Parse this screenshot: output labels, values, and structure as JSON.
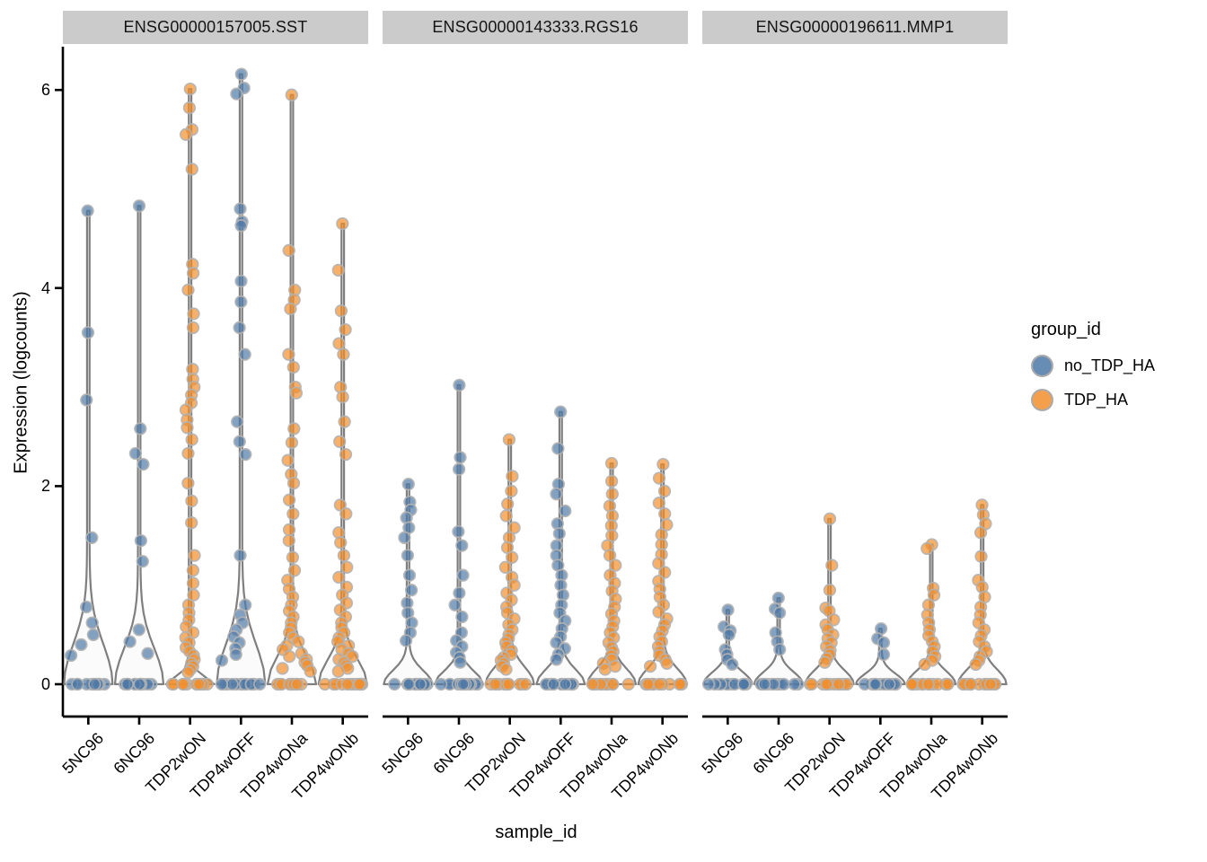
{
  "axes": {
    "y_title": "Expression (logcounts)",
    "x_title": "sample_id",
    "y_ticks": [
      "0",
      "2",
      "4",
      "6"
    ]
  },
  "legend": {
    "title": "group_id",
    "entries": [
      {
        "label": "no_TDP_HA",
        "color": "#4E79A7"
      },
      {
        "label": "TDP_HA",
        "color": "#F28E2B"
      }
    ]
  },
  "chart_data": {
    "type": "violin",
    "subtype": "violin-with-jittered-points",
    "xlabel": "sample_id",
    "ylabel": "Expression (logcounts)",
    "ylim": [
      0,
      6.3
    ],
    "yticks": [
      0,
      2,
      4,
      6
    ],
    "grid": false,
    "legend_position": "right",
    "samples": [
      "5NC96",
      "6NC96",
      "TDP2wON",
      "TDP4wOFF",
      "TDP4wONa",
      "TDP4wONb"
    ],
    "group_of_sample": {
      "5NC96": "no_TDP_HA",
      "6NC96": "no_TDP_HA",
      "TDP2wON": "TDP_HA",
      "TDP4wOFF": "no_TDP_HA",
      "TDP4wONa": "TDP_HA",
      "TDP4wONb": "TDP_HA"
    },
    "group_colors": {
      "no_TDP_HA": "#4E79A7",
      "TDP_HA": "#F28E2B"
    },
    "style": {
      "point_radius": 6.3,
      "point_fill_opacity": 0.7,
      "point_stroke": "#B3B3B3",
      "violin_stroke": "#7F7F7F",
      "violin_fill": "#F7F7F7",
      "strip_bg": "#CBCBCB",
      "axis_color": "#000000"
    },
    "facets": [
      {
        "gene": "ENSG00000157005.SST",
        "violins": [
          {
            "sample": "5NC96",
            "group": "no_TDP_HA",
            "funnel_height": 0.98,
            "n_zero": 13,
            "values": [
              4.78,
              3.55,
              2.87,
              1.48,
              0.78,
              0.62,
              0.5,
              0.4,
              0.29
            ]
          },
          {
            "sample": "6NC96",
            "group": "no_TDP_HA",
            "funnel_height": 0.88,
            "n_zero": 13,
            "values": [
              4.83,
              2.58,
              2.33,
              2.22,
              1.45,
              1.24,
              0.55,
              0.43,
              0.31
            ]
          },
          {
            "sample": "TDP2wON",
            "group": "TDP_HA",
            "funnel_height": 0.2,
            "n_zero": 12,
            "values": [
              6.01,
              5.82,
              5.6,
              5.55,
              5.2,
              4.24,
              4.15,
              3.98,
              3.74,
              3.6,
              3.18,
              3.08,
              3.0,
              2.92,
              2.84,
              2.77,
              2.67,
              2.59,
              2.47,
              2.33,
              2.03,
              1.85,
              1.63,
              1.3,
              1.15,
              1.02,
              0.9,
              0.8,
              0.72,
              0.65,
              0.58,
              0.52,
              0.47,
              0.42,
              0.37,
              0.33,
              0.29,
              0.25,
              0.21,
              0.18,
              0.15,
              0.12
            ]
          },
          {
            "sample": "TDP4wOFF",
            "group": "no_TDP_HA",
            "funnel_height": 0.98,
            "n_zero": 13,
            "values": [
              6.16,
              6.02,
              5.96,
              4.8,
              4.67,
              4.63,
              4.07,
              3.86,
              3.6,
              3.33,
              2.65,
              2.45,
              2.32,
              1.3,
              0.8,
              0.7,
              0.62,
              0.55,
              0.48,
              0.42,
              0.36,
              0.3,
              0.24
            ]
          },
          {
            "sample": "TDP4wONa",
            "group": "TDP_HA",
            "funnel_height": 0.66,
            "n_zero": 12,
            "values": [
              5.95,
              4.38,
              3.98,
              3.88,
              3.79,
              3.33,
              3.2,
              3.0,
              2.94,
              2.58,
              2.44,
              2.26,
              2.12,
              2.03,
              1.86,
              1.72,
              1.56,
              1.45,
              1.28,
              1.15,
              1.05,
              0.96,
              0.88,
              0.8,
              0.74,
              0.68,
              0.62,
              0.57,
              0.52,
              0.47,
              0.43,
              0.39,
              0.35,
              0.31,
              0.28,
              0.25,
              0.22,
              0.19,
              0.16,
              0.13
            ]
          },
          {
            "sample": "TDP4wONb",
            "group": "TDP_HA",
            "funnel_height": 0.6,
            "n_zero": 12,
            "values": [
              4.65,
              4.18,
              3.77,
              3.58,
              3.44,
              3.33,
              3.0,
              2.9,
              2.65,
              2.45,
              2.32,
              1.81,
              1.72,
              1.53,
              1.43,
              1.3,
              1.18,
              1.08,
              0.98,
              0.9,
              0.82,
              0.75,
              0.68,
              0.62,
              0.57,
              0.52,
              0.47,
              0.43,
              0.39,
              0.35,
              0.31,
              0.28,
              0.25,
              0.22,
              0.19,
              0.16,
              0.13
            ]
          }
        ]
      },
      {
        "gene": "ENSG00000143333.RGS16",
        "violins": [
          {
            "sample": "5NC96",
            "group": "no_TDP_HA",
            "funnel_height": 0.34,
            "n_zero": 13,
            "values": [
              2.02,
              1.84,
              1.76,
              1.68,
              1.58,
              1.48,
              1.3,
              1.1,
              0.95,
              0.82,
              0.72,
              0.62,
              0.52,
              0.44
            ]
          },
          {
            "sample": "6NC96",
            "group": "no_TDP_HA",
            "funnel_height": 0.32,
            "n_zero": 13,
            "values": [
              3.02,
              2.29,
              2.17,
              1.54,
              1.4,
              1.1,
              0.92,
              0.8,
              0.68,
              0.52,
              0.44,
              0.38,
              0.32,
              0.27,
              0.22
            ]
          },
          {
            "sample": "TDP2wON",
            "group": "TDP_HA",
            "funnel_height": 0.42,
            "n_zero": 12,
            "values": [
              2.47,
              2.1,
              1.95,
              1.82,
              1.7,
              1.58,
              1.48,
              1.38,
              1.28,
              1.18,
              1.08,
              1.0,
              0.92,
              0.85,
              0.78,
              0.72,
              0.66,
              0.6,
              0.55,
              0.5,
              0.46,
              0.42,
              0.38,
              0.34,
              0.3,
              0.27,
              0.24,
              0.21,
              0.18,
              0.15
            ]
          },
          {
            "sample": "TDP4wOFF",
            "group": "no_TDP_HA",
            "funnel_height": 0.36,
            "n_zero": 13,
            "values": [
              2.75,
              2.38,
              2.02,
              1.92,
              1.75,
              1.62,
              1.52,
              1.4,
              1.3,
              1.2,
              1.1,
              1.0,
              0.9,
              0.8,
              0.72,
              0.64,
              0.56,
              0.48,
              0.42,
              0.36,
              0.3,
              0.25
            ]
          },
          {
            "sample": "TDP4wONa",
            "group": "TDP_HA",
            "funnel_height": 0.38,
            "n_zero": 12,
            "values": [
              2.23,
              2.05,
              1.92,
              1.8,
              1.7,
              1.6,
              1.5,
              1.4,
              1.3,
              1.2,
              1.1,
              1.02,
              0.94,
              0.86,
              0.78,
              0.71,
              0.64,
              0.58,
              0.52,
              0.47,
              0.42,
              0.37,
              0.33,
              0.29,
              0.25,
              0.21,
              0.18,
              0.15
            ]
          },
          {
            "sample": "TDP4wONb",
            "group": "TDP_HA",
            "funnel_height": 0.38,
            "n_zero": 12,
            "values": [
              2.22,
              2.08,
              1.95,
              1.83,
              1.72,
              1.61,
              1.51,
              1.41,
              1.31,
              1.22,
              1.13,
              1.04,
              0.96,
              0.88,
              0.8,
              0.73,
              0.66,
              0.6,
              0.54,
              0.48,
              0.43,
              0.38,
              0.33,
              0.29,
              0.25,
              0.21,
              0.18
            ]
          }
        ]
      },
      {
        "gene": "ENSG00000196611.MMP1",
        "violins": [
          {
            "sample": "5NC96",
            "group": "no_TDP_HA",
            "funnel_height": 0.3,
            "n_zero": 13,
            "values": [
              0.75,
              0.58,
              0.54,
              0.5,
              0.35,
              0.3,
              0.25,
              0.2
            ]
          },
          {
            "sample": "6NC96",
            "group": "no_TDP_HA",
            "funnel_height": 0.3,
            "n_zero": 13,
            "values": [
              0.87,
              0.76,
              0.72,
              0.52,
              0.43,
              0.35
            ]
          },
          {
            "sample": "TDP2wON",
            "group": "TDP_HA",
            "funnel_height": 0.34,
            "n_zero": 13,
            "values": [
              1.67,
              1.2,
              0.95,
              0.77,
              0.74,
              0.65,
              0.6,
              0.55,
              0.5,
              0.46,
              0.42,
              0.38,
              0.34,
              0.3,
              0.26,
              0.22
            ]
          },
          {
            "sample": "TDP4wOFF",
            "group": "no_TDP_HA",
            "funnel_height": 0.26,
            "n_zero": 13,
            "values": [
              0.56,
              0.46,
              0.42,
              0.3
            ]
          },
          {
            "sample": "TDP4wONa",
            "group": "TDP_HA",
            "funnel_height": 0.32,
            "n_zero": 13,
            "values": [
              1.41,
              1.37,
              0.97,
              0.9,
              0.8,
              0.7,
              0.62,
              0.55,
              0.49,
              0.43,
              0.38,
              0.33,
              0.28,
              0.24,
              0.2
            ]
          },
          {
            "sample": "TDP4wONb",
            "group": "TDP_HA",
            "funnel_height": 0.36,
            "n_zero": 13,
            "values": [
              1.81,
              1.71,
              1.62,
              1.53,
              1.29,
              1.05,
              0.98,
              0.88,
              0.78,
              0.7,
              0.62,
              0.55,
              0.49,
              0.43,
              0.38,
              0.33,
              0.28,
              0.24,
              0.2
            ]
          }
        ]
      }
    ]
  }
}
